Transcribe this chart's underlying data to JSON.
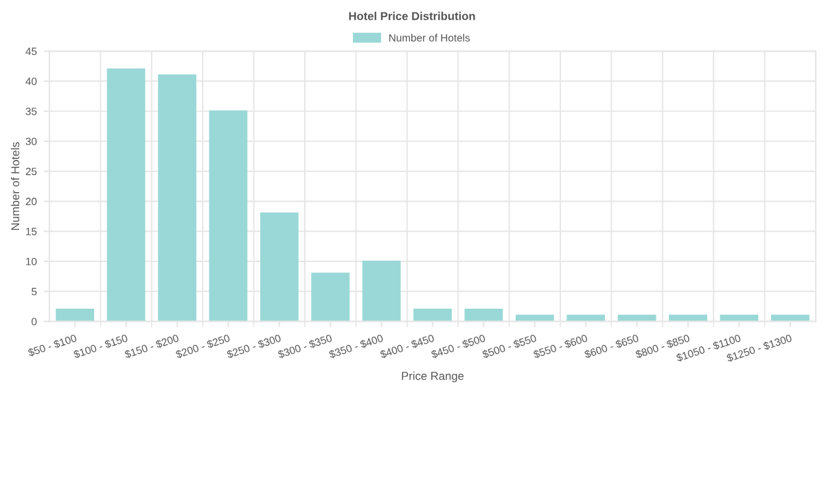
{
  "chart_data": {
    "type": "bar",
    "title": "Hotel Price Distribution",
    "xlabel": "Price Range",
    "ylabel": "Number of Hotels",
    "categories": [
      "$50 - $100",
      "$100 - $150",
      "$150 - $200",
      "$200 - $250",
      "$250 - $300",
      "$300 - $350",
      "$350 - $400",
      "$400 - $450",
      "$450 - $500",
      "$500 - $550",
      "$550 - $600",
      "$600 - $650",
      "$800 - $850",
      "$1050 - $1100",
      "$1250 - $1300"
    ],
    "series": [
      {
        "name": "Number of Hotels",
        "color": "#99d8d6",
        "values": [
          2,
          42,
          41,
          35,
          18,
          8,
          10,
          2,
          2,
          1,
          1,
          1,
          1,
          1,
          1
        ]
      }
    ],
    "ylim": [
      0,
      45
    ],
    "yticks": [
      0,
      5,
      10,
      15,
      20,
      25,
      30,
      35,
      40,
      45
    ],
    "grid": true,
    "legend": "top"
  }
}
